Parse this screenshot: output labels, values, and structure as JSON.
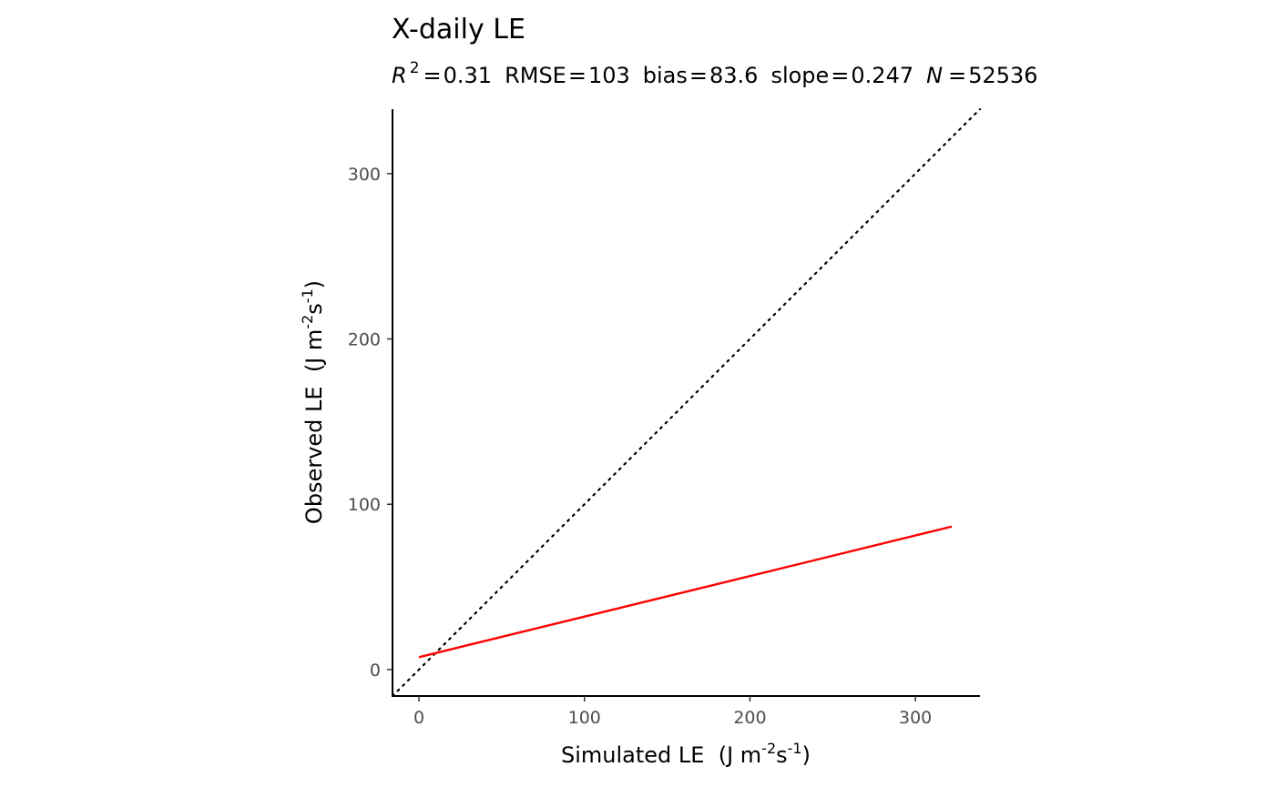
{
  "chart_data": {
    "type": "line",
    "title": "X-daily  LE",
    "subtitle": {
      "r2_symbol": "R",
      "r2_exponent": "2",
      "r2_value": "0.31",
      "rmse_label": "RMSE",
      "rmse_value": "103",
      "bias_label": "bias",
      "bias_value": "83.6",
      "slope_label": "slope",
      "slope_value": "0.247",
      "n_symbol": "N",
      "n_value": "52536",
      "equals": "="
    },
    "xlabel": {
      "prefix": "Simulated LE  (J m",
      "exp1": "-2",
      "middle": "s",
      "exp2": "-1",
      "suffix": ")"
    },
    "ylabel": {
      "prefix": "Observed LE  (J m",
      "exp1": "-2",
      "middle": "s",
      "exp2": "-1",
      "suffix": ")"
    },
    "xlim": [
      -16,
      339
    ],
    "ylim": [
      -16,
      339
    ],
    "x_ticks": [
      0,
      100,
      200,
      300
    ],
    "x_tick_labels": [
      "0",
      "100",
      "200",
      "300"
    ],
    "y_ticks": [
      0,
      100,
      200,
      300
    ],
    "y_tick_labels": [
      "0",
      "100",
      "200",
      "300"
    ],
    "grid": false,
    "series": [
      {
        "kind": "identity",
        "color": "#000000",
        "dash": "dotted",
        "x": [
          -16,
          339
        ],
        "y": [
          -16,
          339
        ]
      },
      {
        "kind": "fit",
        "color": "#ff0000",
        "dash": "solid",
        "x": [
          0,
          322
        ],
        "y": [
          7.5,
          86.5
        ]
      }
    ]
  }
}
